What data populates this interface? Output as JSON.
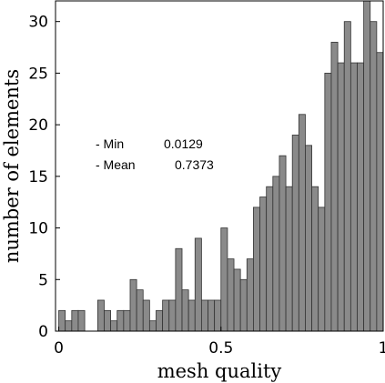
{
  "chart_data": {
    "type": "bar",
    "title": "",
    "xlabel": "mesh quality",
    "ylabel": "number of elements",
    "xlim": [
      -0.01,
      1.0
    ],
    "ylim": [
      0,
      32
    ],
    "bin_width": 0.02,
    "x_ticks": [
      0,
      0.5,
      1
    ],
    "x_tick_labels": [
      "0",
      "0.5",
      "1"
    ],
    "y_ticks": [
      0,
      5,
      10,
      15,
      20,
      25,
      30
    ],
    "y_tick_labels": [
      "0",
      "5",
      "10",
      "15",
      "20",
      "25",
      "30"
    ],
    "grid": false,
    "bar_color": "#8a8a8a",
    "bin_starts": [
      0.0,
      0.02,
      0.04,
      0.06,
      0.08,
      0.1,
      0.12,
      0.14,
      0.16,
      0.18,
      0.2,
      0.22,
      0.24,
      0.26,
      0.28,
      0.3,
      0.32,
      0.34,
      0.36,
      0.38,
      0.4,
      0.42,
      0.44,
      0.46,
      0.48,
      0.5,
      0.52,
      0.54,
      0.56,
      0.58,
      0.6,
      0.62,
      0.64,
      0.66,
      0.68,
      0.7,
      0.72,
      0.74,
      0.76,
      0.78,
      0.8,
      0.82,
      0.84,
      0.86,
      0.88,
      0.9,
      0.92,
      0.94,
      0.96,
      0.98
    ],
    "values": [
      2,
      1,
      2,
      2,
      0,
      0,
      3,
      2,
      1,
      2,
      2,
      5,
      4,
      3,
      1,
      2,
      3,
      3,
      8,
      4,
      3,
      9,
      3,
      3,
      3,
      10,
      7,
      6,
      5,
      7,
      12,
      13,
      14,
      15,
      17,
      14,
      19,
      21,
      18,
      14,
      12,
      25,
      28,
      26,
      30,
      26,
      26,
      32,
      30,
      27
    ],
    "annotations": [
      {
        "label": "- Min",
        "value": "0.0129"
      },
      {
        "label": "- Mean",
        "value": "0.7373"
      }
    ]
  }
}
